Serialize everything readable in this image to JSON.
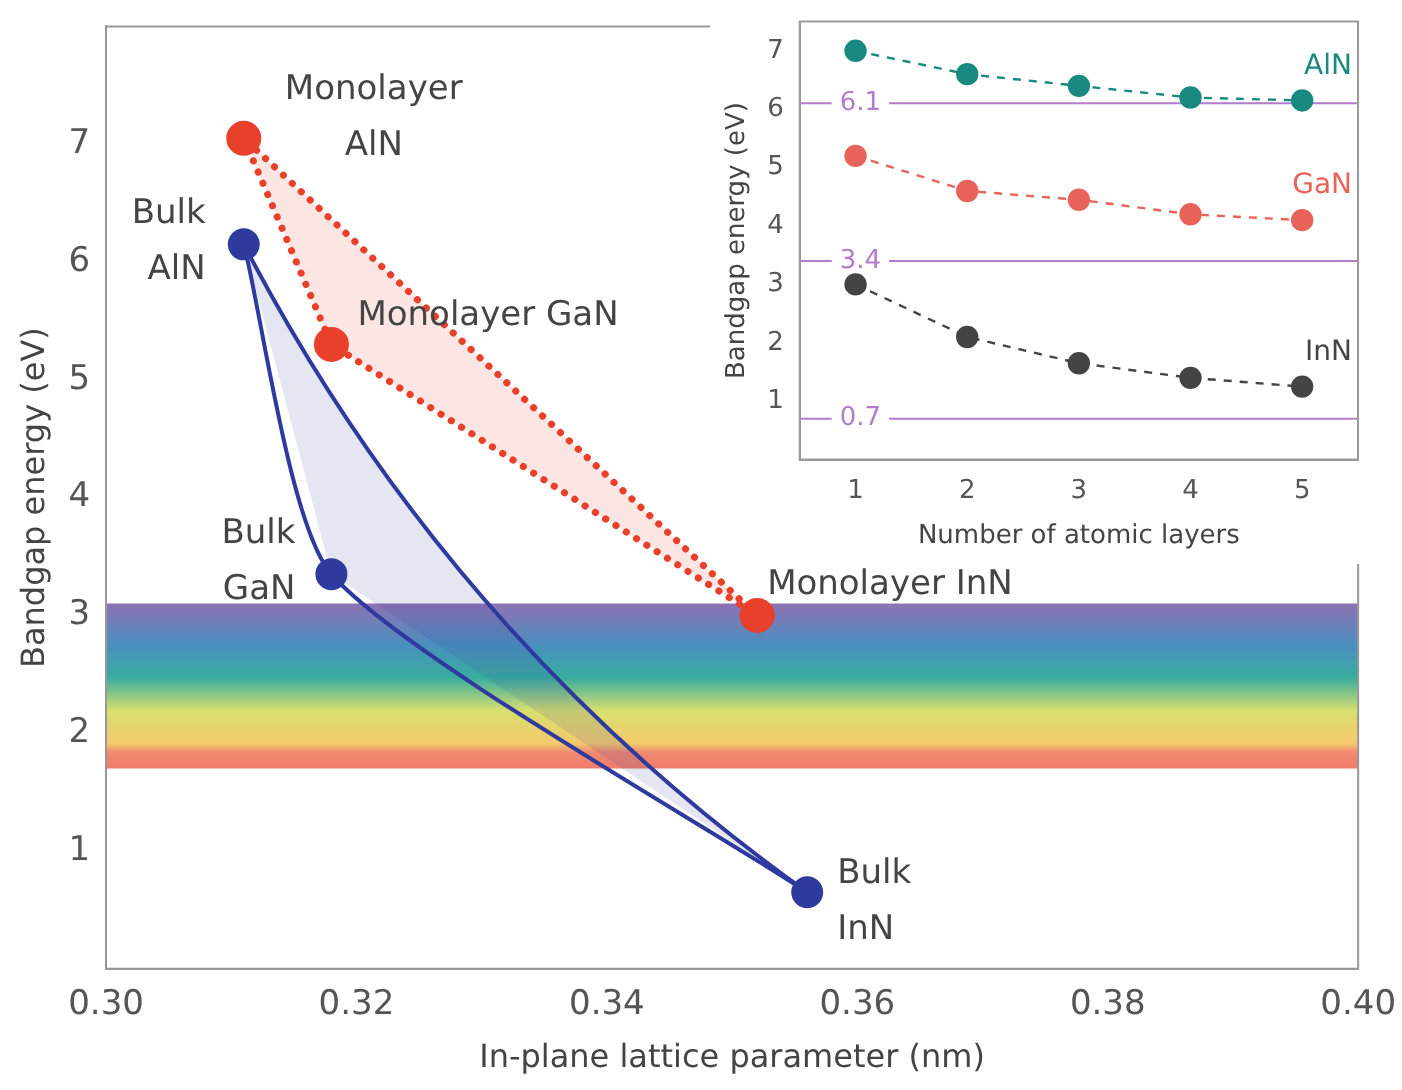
{
  "chart_data": [
    {
      "type": "line",
      "xlabel": "In-plane lattice parameter (nm)",
      "ylabel": "Bandgap energy (eV)",
      "xlim": [
        0.3,
        0.4
      ],
      "xticks": [
        {
          "value": 0.3,
          "label": "0.30"
        },
        0.32,
        0.34,
        0.36,
        0.38,
        {
          "value": 0.4,
          "label": "0.40"
        }
      ],
      "ylim": [
        0,
        8
      ],
      "yticks": [
        1,
        2,
        3,
        4,
        5,
        6,
        7
      ],
      "grid": false,
      "legend": false,
      "marker": "circle",
      "series": [
        {
          "type": "line",
          "color": "#2e3a9e",
          "line_style": "solid",
          "x": [
            0.311,
            0.318,
            0.356
          ],
          "values": [
            6.15,
            3.35,
            0.65
          ]
        },
        {
          "type": "line",
          "color": "#e8402a",
          "line_style": "dotted",
          "x": [
            0.311,
            0.318,
            0.352
          ],
          "values": [
            7.05,
            5.3,
            3.0
          ]
        }
      ],
      "bands": [
        {
          "axis": "y",
          "from": 1.7,
          "to": 3.1
        }
      ],
      "annotations": [
        {
          "text": "Monolayer AlN",
          "x": 0.311,
          "y": 7.05
        },
        {
          "text": "Bulk AlN",
          "x": 0.311,
          "y": 6.15
        },
        {
          "text": "Monolayer GaN",
          "x": 0.318,
          "y": 5.3
        },
        {
          "text": "Bulk GaN",
          "x": 0.318,
          "y": 3.35
        },
        {
          "text": "Monolayer InN",
          "x": 0.352,
          "y": 3.0
        },
        {
          "text": "Bulk InN",
          "x": 0.356,
          "y": 0.65
        }
      ]
    },
    {
      "type": "line",
      "xlabel": "Number of atomic layers",
      "ylabel": "Bandgap energy (eV)",
      "categories": [
        "1",
        "2",
        "3",
        "4",
        "5"
      ],
      "ylim": [
        0,
        7.5
      ],
      "yticks": [
        1,
        2,
        3,
        4,
        5,
        6,
        7
      ],
      "grid": false,
      "legend": false,
      "marker": "circle",
      "line_style": "dashed",
      "series": [
        {
          "name": "AlN",
          "color": "#1a8a80",
          "values": [
            7.0,
            6.6,
            6.4,
            6.2,
            6.15
          ]
        },
        {
          "name": "GaN",
          "color": "#e8635a",
          "values": [
            5.2,
            4.6,
            4.45,
            4.2,
            4.1
          ]
        },
        {
          "name": "InN",
          "color": "#444444",
          "values": [
            3.0,
            2.1,
            1.65,
            1.4,
            1.25
          ]
        }
      ],
      "ref_lines": [
        {
          "axis": "y",
          "value": 6.1,
          "label": "6.1",
          "color": "#b57ccc"
        },
        {
          "axis": "y",
          "value": 3.4,
          "label": "3.4",
          "color": "#b57ccc"
        },
        {
          "axis": "y",
          "value": 0.7,
          "label": "0.7",
          "color": "#b57ccc"
        }
      ]
    }
  ]
}
